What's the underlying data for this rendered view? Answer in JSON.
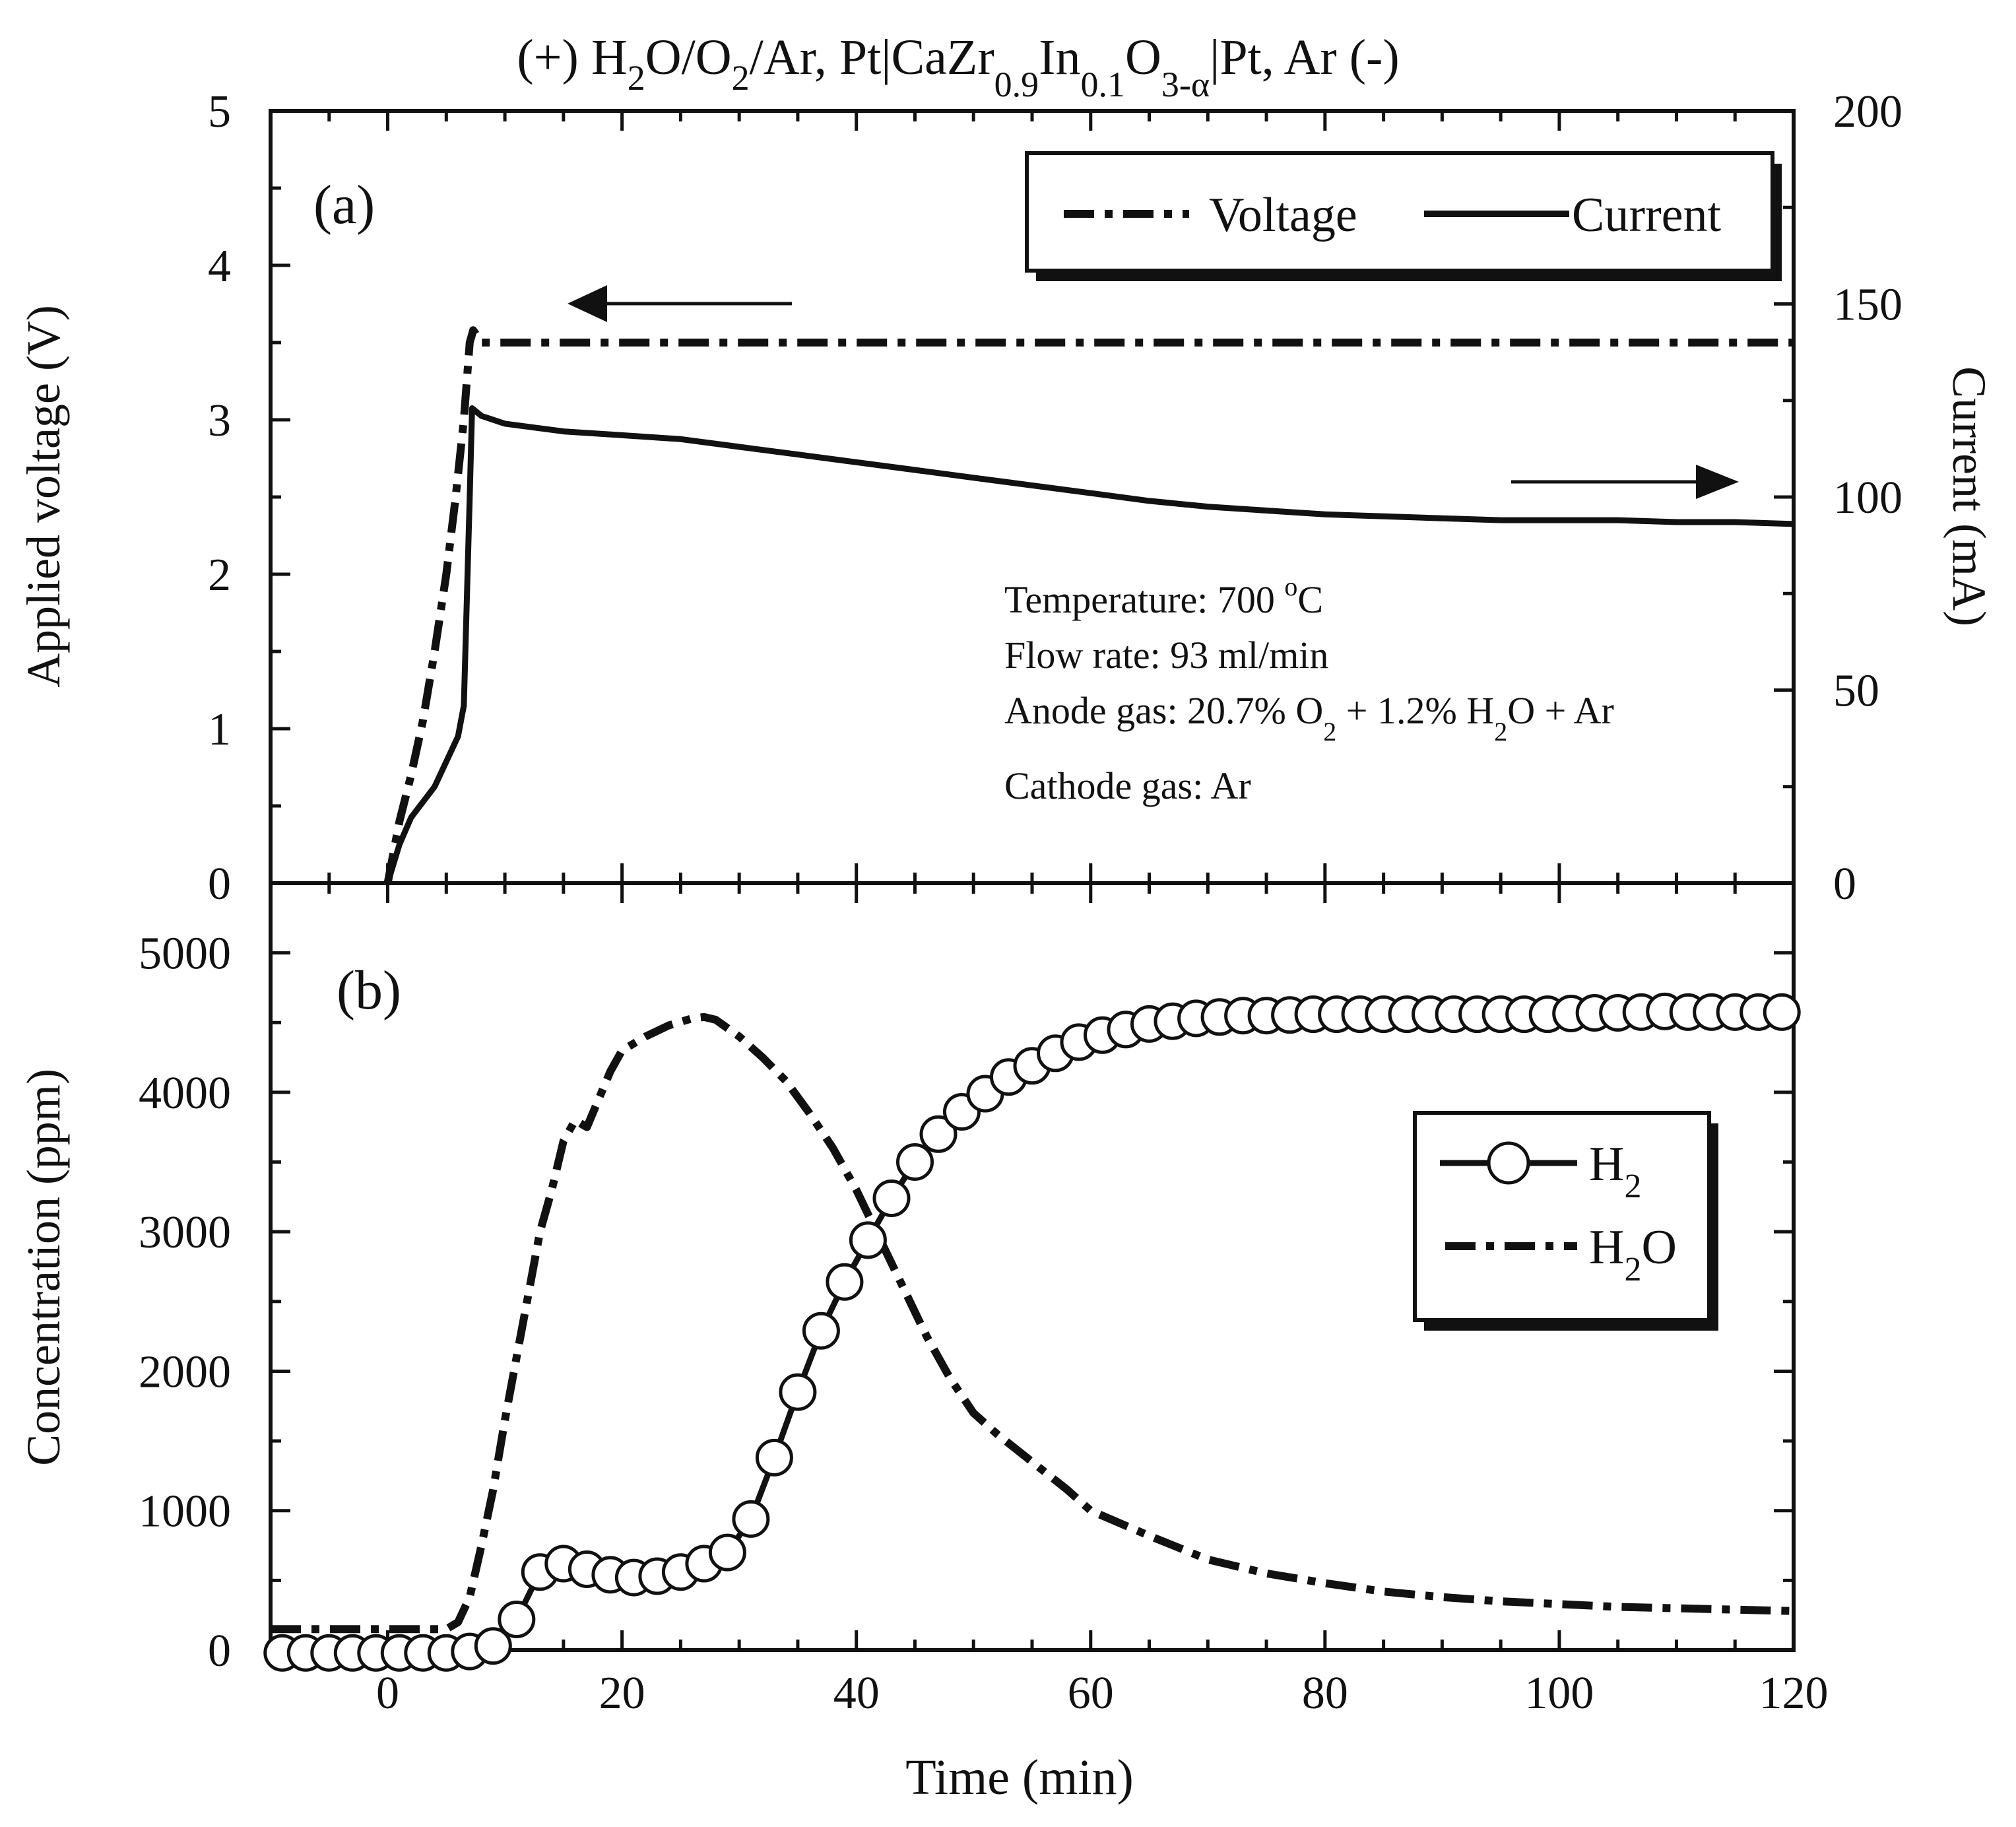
{
  "title": {
    "prefix": "(+) H",
    "sub1": "2",
    "mid1": "O/O",
    "sub2": "2",
    "mid2": "/Ar, Pt|CaZr",
    "sub3": "0.9",
    "mid3": "In",
    "sub4": "0.1",
    "mid4": "O",
    "sub5": "3-α",
    "suffix": "|Pt, Ar (-)"
  },
  "x_axis": {
    "label": "Time (min)",
    "range": [
      -10,
      120
    ],
    "ticks": [
      "0",
      "20",
      "40",
      "60",
      "80",
      "100",
      "120"
    ]
  },
  "panel_a": {
    "label": "(a)",
    "ylabel_left": "Applied voltage (V)",
    "ylabel_right": "Current (mA)",
    "yticks_left": [
      "0",
      "1",
      "2",
      "3",
      "4",
      "5"
    ],
    "yticks_right": [
      "0",
      "50",
      "100",
      "150",
      "200"
    ],
    "legend": {
      "voltage": "Voltage",
      "current": "Current"
    },
    "conditions": {
      "temperature": "Temperature: 700 ",
      "temperature_unit_sup": "o",
      "temperature_unit": "C",
      "flow": "Flow rate: 93 ml/min",
      "anode_a": "Anode gas: 20.7% O",
      "anode_sub1": "2",
      "anode_b": " + 1.2% H",
      "anode_sub2": "2",
      "anode_c": "O + Ar",
      "cathode": "Cathode gas: Ar"
    }
  },
  "panel_b": {
    "label": "(b)",
    "ylabel": "Concentration (ppm)",
    "yticks": [
      "0",
      "1000",
      "2000",
      "3000",
      "4000",
      "5000"
    ],
    "legend": {
      "h2": "H",
      "h2_sub": "2",
      "h2o_a": "H",
      "h2o_sub": "2",
      "h2o_b": "O"
    }
  },
  "chart_data": [
    {
      "type": "line",
      "title": "(+) H2O/O2/Ar, Pt|CaZr0.9In0.1O3-α|Pt, Ar (-)",
      "panel": "(a)",
      "xlabel": "Time (min)",
      "ylabel": "Applied voltage (V)",
      "y2label": "Current (mA)",
      "xlim": [
        -10,
        120
      ],
      "ylim": [
        0,
        5
      ],
      "y2lim": [
        0,
        200
      ],
      "legend_position": "top-right",
      "series": [
        {
          "name": "Voltage",
          "axis": "left",
          "style": "dash-dot",
          "x": [
            0,
            1,
            2,
            3,
            4,
            5,
            5.8,
            6.5,
            7,
            7.3,
            8,
            20,
            40,
            60,
            80,
            100,
            120
          ],
          "y": [
            0,
            0.4,
            0.7,
            1.05,
            1.5,
            2.0,
            2.5,
            3.0,
            3.5,
            3.58,
            3.5,
            3.5,
            3.5,
            3.5,
            3.5,
            3.5,
            3.5
          ]
        },
        {
          "name": "Current",
          "axis": "right",
          "style": "solid",
          "x": [
            0,
            1,
            2,
            4,
            6,
            6.5,
            7,
            7.2,
            8,
            10,
            15,
            20,
            25,
            30,
            35,
            40,
            45,
            50,
            55,
            60,
            65,
            70,
            75,
            80,
            85,
            90,
            95,
            100,
            105,
            110,
            115,
            120
          ],
          "y": [
            0,
            10,
            17,
            25,
            38,
            46,
            100,
            123,
            121,
            119,
            117,
            116,
            115,
            113,
            111,
            109,
            107,
            105,
            103,
            101,
            99,
            97.5,
            96.5,
            95.5,
            95,
            94.5,
            94,
            94,
            94,
            93.5,
            93.5,
            93
          ]
        }
      ]
    },
    {
      "type": "line",
      "panel": "(b)",
      "xlabel": "Time (min)",
      "ylabel": "Concentration (ppm)",
      "xlim": [
        -10,
        120
      ],
      "ylim": [
        0,
        5500
      ],
      "legend_position": "right",
      "series": [
        {
          "name": "H2",
          "style": "solid-open-circle",
          "x": [
            -9,
            -7,
            -5,
            -3,
            -1,
            1,
            3,
            5,
            7,
            9,
            11,
            13,
            15,
            17,
            19,
            21,
            23,
            25,
            27,
            29,
            31,
            33,
            35,
            37,
            39,
            41,
            43,
            45,
            47,
            49,
            51,
            53,
            55,
            57,
            59,
            61,
            63,
            65,
            67,
            69,
            71,
            73,
            75,
            77,
            79,
            81,
            83,
            85,
            87,
            89,
            91,
            93,
            95,
            97,
            99,
            101,
            103,
            105,
            107,
            109,
            111,
            113,
            115,
            117,
            119
          ],
          "y": [
            -20,
            -20,
            -20,
            -20,
            -20,
            -20,
            -20,
            -20,
            -10,
            30,
            220,
            560,
            620,
            580,
            540,
            520,
            530,
            560,
            620,
            700,
            940,
            1380,
            1850,
            2290,
            2640,
            2940,
            3240,
            3500,
            3700,
            3860,
            3990,
            4110,
            4190,
            4280,
            4360,
            4410,
            4450,
            4490,
            4510,
            4530,
            4540,
            4550,
            4550,
            4555,
            4560,
            4560,
            4560,
            4560,
            4560,
            4560,
            4560,
            4560,
            4560,
            4560,
            4560,
            4565,
            4570,
            4570,
            4575,
            4580,
            4575,
            4575,
            4575,
            4575,
            4575
          ]
        },
        {
          "name": "H2O",
          "style": "dash-dot",
          "x": [
            -10,
            -5,
            0,
            4,
            5,
            6,
            7,
            8,
            9,
            10,
            11,
            12,
            13,
            14,
            15,
            16,
            17,
            18,
            19,
            20,
            22,
            24,
            26,
            27,
            28,
            30,
            32,
            34,
            36,
            38,
            40,
            42,
            44,
            46,
            48,
            50,
            52,
            55,
            58,
            60,
            65,
            70,
            75,
            80,
            85,
            90,
            95,
            100,
            105,
            110,
            115,
            120
          ],
          "y": [
            150,
            150,
            150,
            150,
            150,
            200,
            380,
            750,
            1150,
            1650,
            2100,
            2550,
            3000,
            3300,
            3650,
            3800,
            3750,
            3950,
            4150,
            4300,
            4400,
            4480,
            4530,
            4540,
            4520,
            4400,
            4250,
            4080,
            3850,
            3600,
            3300,
            2950,
            2600,
            2250,
            1950,
            1700,
            1550,
            1350,
            1150,
            1000,
            820,
            650,
            550,
            480,
            420,
            380,
            350,
            330,
            310,
            300,
            290,
            280
          ]
        }
      ]
    }
  ]
}
